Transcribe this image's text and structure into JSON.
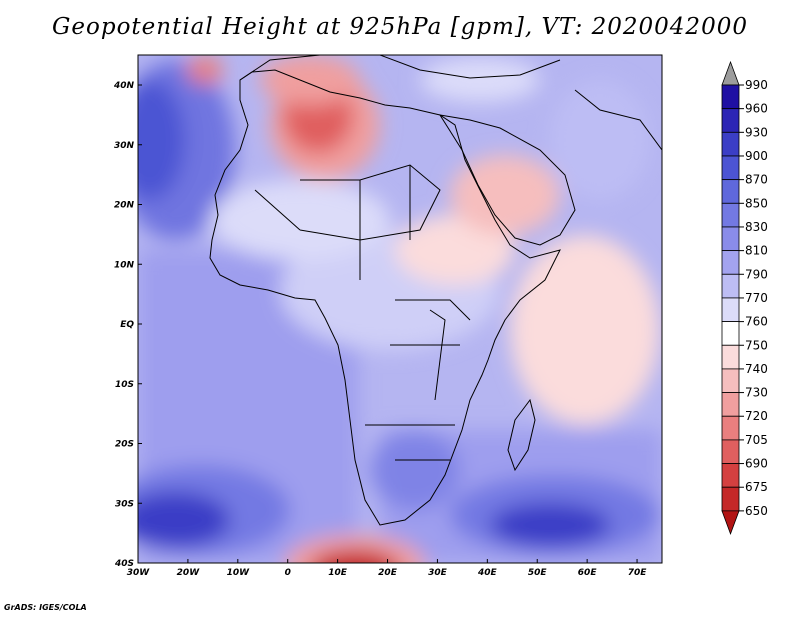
{
  "title": "Geopotential Height at 925hPa [gpm], VT: 2020042000",
  "credit": "GrADS: IGES/COLA",
  "lon_ticks": [
    "30W",
    "20W",
    "10W",
    "0",
    "10E",
    "20E",
    "30E",
    "40E",
    "50E",
    "60E",
    "70E"
  ],
  "lat_ticks": [
    "40N",
    "30N",
    "20N",
    "10N",
    "EQ",
    "10S",
    "20S",
    "30S",
    "40S"
  ],
  "colorbar": {
    "labels": [
      "990",
      "960",
      "930",
      "900",
      "870",
      "850",
      "830",
      "810",
      "790",
      "770",
      "760",
      "750",
      "740",
      "730",
      "720",
      "705",
      "690",
      "675",
      "650"
    ],
    "colors": [
      "#9c9c9c",
      "#1f10a3",
      "#2c25b5",
      "#3b3ec6",
      "#4c54d3",
      "#5f68dc",
      "#7379e3",
      "#8a8ce9",
      "#a3a3ef",
      "#bdbdf4",
      "#dcdcf9",
      "#ffffff",
      "#fbdcdc",
      "#f6bebe",
      "#f09f9f",
      "#e97f7f",
      "#e05f5f",
      "#d44040",
      "#c42828",
      "#b21414"
    ]
  }
}
